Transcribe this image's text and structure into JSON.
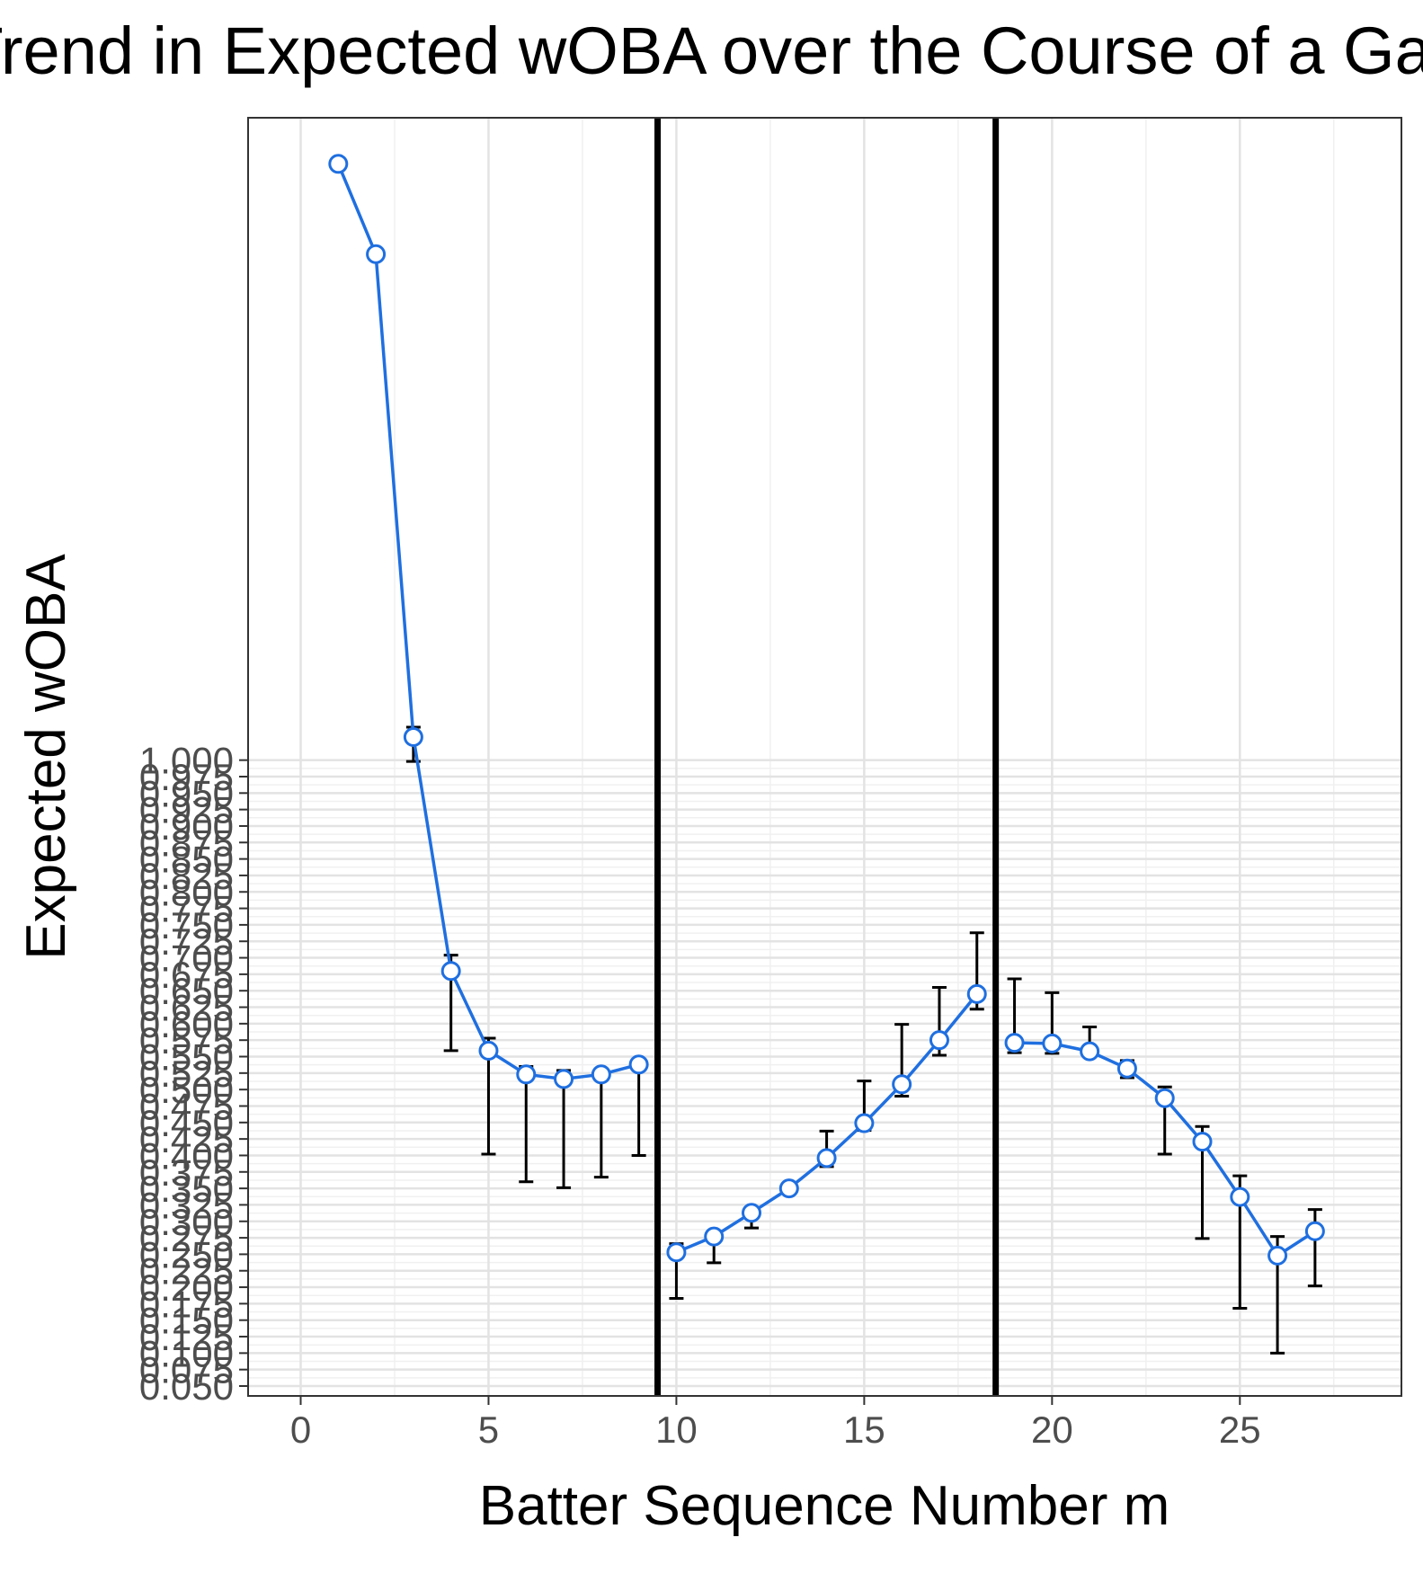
{
  "chart_data": {
    "type": "line",
    "title": "Trend in Expected wOBA over the Course of a Game",
    "xlabel": "Batter Sequence Number m",
    "ylabel": "Expected wOBA",
    "xlim": [
      -1.4,
      29.3
    ],
    "ylim": [
      0.035,
      1.975
    ],
    "x_ticks": [
      {
        "value": 0,
        "label": "0"
      },
      {
        "value": 5,
        "label": "5"
      },
      {
        "value": 10,
        "label": "10"
      },
      {
        "value": 15,
        "label": "15"
      },
      {
        "value": 20,
        "label": "20"
      },
      {
        "value": 25,
        "label": "25"
      }
    ],
    "y_ticks": [
      {
        "value": 0.05,
        "label": "0.050"
      },
      {
        "value": 0.075,
        "label": "0.075"
      },
      {
        "value": 0.1,
        "label": "0.100"
      },
      {
        "value": 0.125,
        "label": "0.125"
      },
      {
        "value": 0.15,
        "label": "0.150"
      },
      {
        "value": 0.175,
        "label": "0.175"
      },
      {
        "value": 0.2,
        "label": "0.200"
      },
      {
        "value": 0.225,
        "label": "0.225"
      },
      {
        "value": 0.25,
        "label": "0.250"
      },
      {
        "value": 0.275,
        "label": "0.275"
      },
      {
        "value": 0.3,
        "label": "0.300"
      },
      {
        "value": 0.325,
        "label": "0.325"
      },
      {
        "value": 0.35,
        "label": "0.350"
      },
      {
        "value": 0.375,
        "label": "0.375"
      },
      {
        "value": 0.4,
        "label": "0.400"
      },
      {
        "value": 0.425,
        "label": "0.425"
      },
      {
        "value": 0.45,
        "label": "0.450"
      },
      {
        "value": 0.475,
        "label": "0.475"
      },
      {
        "value": 0.5,
        "label": "0.500"
      },
      {
        "value": 0.525,
        "label": "0.525"
      },
      {
        "value": 0.55,
        "label": "0.550"
      },
      {
        "value": 0.575,
        "label": "0.575"
      },
      {
        "value": 0.6,
        "label": "0.600"
      },
      {
        "value": 0.625,
        "label": "0.625"
      },
      {
        "value": 0.65,
        "label": "0.650"
      },
      {
        "value": 0.675,
        "label": "0.675"
      },
      {
        "value": 0.7,
        "label": "0.700"
      },
      {
        "value": 0.725,
        "label": "0.725"
      },
      {
        "value": 0.75,
        "label": "0.750"
      },
      {
        "value": 0.775,
        "label": "0.775"
      },
      {
        "value": 0.8,
        "label": "0.800"
      },
      {
        "value": 0.825,
        "label": "0.825"
      },
      {
        "value": 0.85,
        "label": "0.850"
      },
      {
        "value": 0.875,
        "label": "0.875"
      },
      {
        "value": 0.9,
        "label": "0.900"
      },
      {
        "value": 0.925,
        "label": "0.925"
      },
      {
        "value": 0.95,
        "label": "0.950"
      },
      {
        "value": 0.975,
        "label": "0.975"
      },
      {
        "value": 1.0,
        "label": "1.000"
      }
    ],
    "vlines": [
      9.5,
      18.5
    ],
    "grid": true,
    "series": [
      {
        "color": "#1f6fe0",
        "points": [
          {
            "x": 1,
            "y": 1.905,
            "lo": null,
            "hi": null
          },
          {
            "x": 2,
            "y": 1.768,
            "lo": null,
            "hi": null
          },
          {
            "x": 3,
            "y": 1.035,
            "lo": 0.998,
            "hi": 1.05
          },
          {
            "x": 4,
            "y": 0.68,
            "lo": 0.559,
            "hi": 0.704
          },
          {
            "x": 5,
            "y": 0.559,
            "lo": 0.402,
            "hi": 0.578
          },
          {
            "x": 6,
            "y": 0.523,
            "lo": 0.36,
            "hi": 0.535
          },
          {
            "x": 7,
            "y": 0.516,
            "lo": 0.351,
            "hi": 0.529
          },
          {
            "x": 8,
            "y": 0.523,
            "lo": 0.367,
            "hi": 0.531
          },
          {
            "x": 9,
            "y": 0.538,
            "lo": 0.4,
            "hi": 0.545
          },
          {
            "x": 10,
            "y": 0.253,
            "lo": 0.183,
            "hi": 0.266
          },
          {
            "x": 11,
            "y": 0.277,
            "lo": 0.237,
            "hi": 0.285
          },
          {
            "x": 12,
            "y": 0.313,
            "lo": 0.29,
            "hi": 0.317
          },
          {
            "x": 13,
            "y": 0.35,
            "lo": null,
            "hi": null
          },
          {
            "x": 14,
            "y": 0.396,
            "lo": 0.383,
            "hi": 0.437
          },
          {
            "x": 15,
            "y": 0.449,
            "lo": 0.438,
            "hi": 0.513
          },
          {
            "x": 16,
            "y": 0.508,
            "lo": 0.49,
            "hi": 0.599
          },
          {
            "x": 17,
            "y": 0.575,
            "lo": 0.552,
            "hi": 0.655
          },
          {
            "x": 18,
            "y": 0.645,
            "lo": 0.622,
            "hi": 0.738
          },
          {
            "x": 19,
            "y": 0.571,
            "lo": 0.556,
            "hi": 0.668
          },
          {
            "x": 20,
            "y": 0.57,
            "lo": 0.555,
            "hi": 0.647
          },
          {
            "x": 21,
            "y": 0.558,
            "lo": null,
            "hi": 0.595
          },
          {
            "x": 22,
            "y": 0.532,
            "lo": 0.518,
            "hi": 0.544
          },
          {
            "x": 23,
            "y": 0.487,
            "lo": 0.402,
            "hi": 0.504
          },
          {
            "x": 24,
            "y": 0.421,
            "lo": 0.274,
            "hi": 0.444
          },
          {
            "x": 25,
            "y": 0.337,
            "lo": 0.168,
            "hi": 0.369
          },
          {
            "x": 26,
            "y": 0.248,
            "lo": 0.1,
            "hi": 0.277
          },
          {
            "x": 27,
            "y": 0.285,
            "lo": 0.202,
            "hi": 0.318
          }
        ]
      }
    ]
  }
}
